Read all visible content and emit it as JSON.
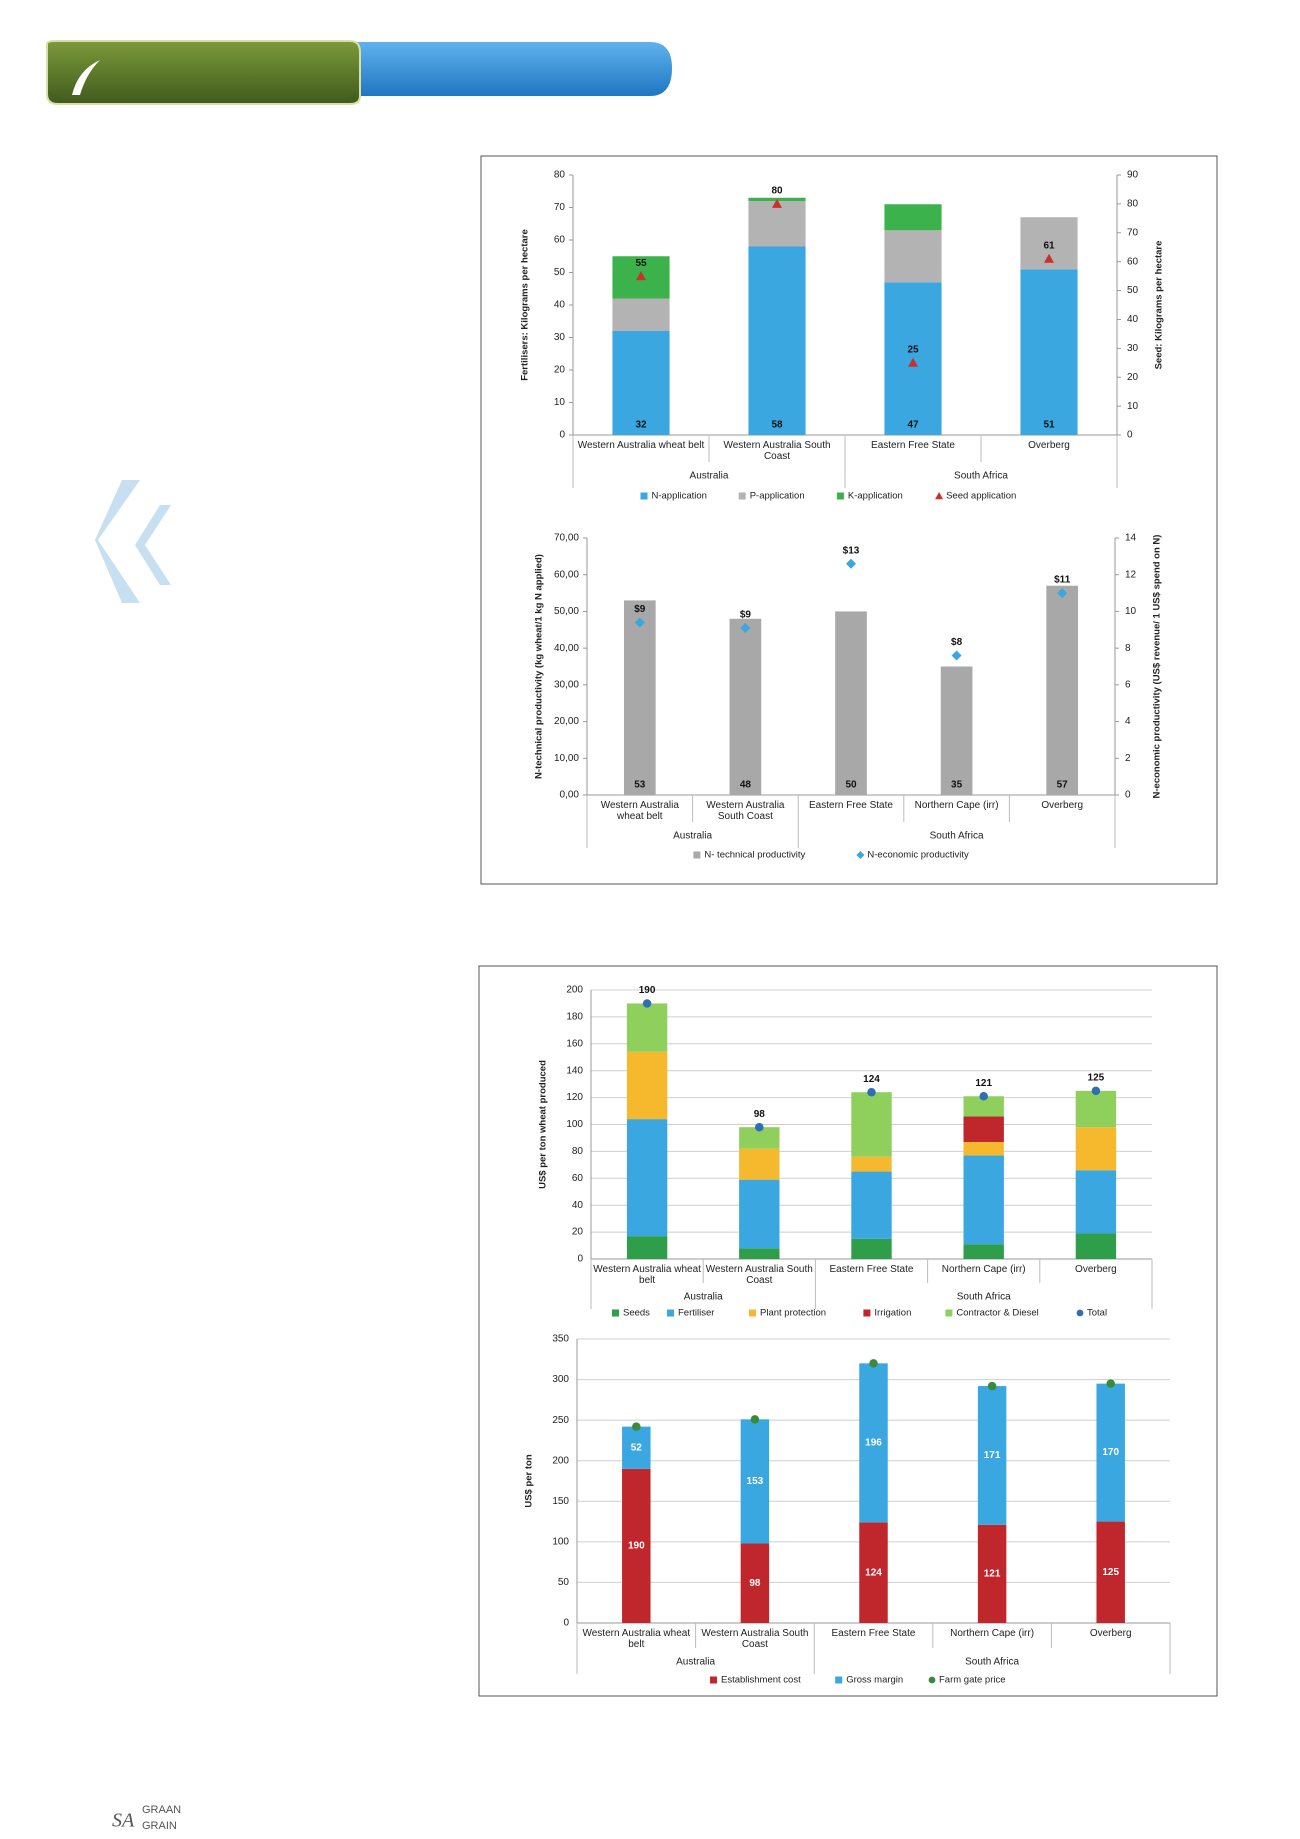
{
  "chart_data": [
    {
      "type": "bar",
      "stacked": true,
      "y_label": "Fertilisers: Kilograms per hectare",
      "y2_label": "Seed: Kilograms per hectare",
      "categories": [
        "Western Australia wheat belt",
        "Western Australia South Coast",
        "Eastern Free State",
        "Overberg"
      ],
      "groups": [
        {
          "name": "Australia",
          "count": 2
        },
        {
          "name": "South Africa",
          "count": 2
        }
      ],
      "series": [
        {
          "name": "N-application",
          "color": "#3ba7e1",
          "values": [
            32,
            58,
            47,
            51
          ],
          "labels": "bottom"
        },
        {
          "name": "P-application",
          "color": "#b3b3b3",
          "values": [
            10,
            14,
            16,
            16
          ]
        },
        {
          "name": "K-application",
          "color": "#3bb24b",
          "values": [
            13,
            1,
            8,
            0
          ]
        },
        {
          "name": "Seed application",
          "color": "#c8312c",
          "type": "scatter",
          "marker": "triangle",
          "axis": "y2",
          "values": [
            55,
            80,
            25,
            61
          ],
          "labels": "above"
        }
      ],
      "ylim": [
        0,
        80
      ],
      "yticks": [
        0,
        10,
        20,
        30,
        40,
        50,
        60,
        70,
        80
      ],
      "y2lim": [
        0,
        90
      ],
      "y2ticks": [
        0,
        10,
        20,
        30,
        40,
        50,
        60,
        70,
        80,
        90
      ],
      "grid": false,
      "legend": "bottom"
    },
    {
      "type": "bar",
      "stacked": true,
      "y_label": "N-technical productivity (kg wheat/1 kg N applied)",
      "y2_label": "N-economic productivity (US$ revenue/ 1 US$ spend on N)",
      "categories": [
        "Western Australia wheat belt",
        "Western Australia South Coast",
        "Eastern Free State",
        "Northern Cape (irr)",
        "Overberg"
      ],
      "groups": [
        {
          "name": "Australia",
          "count": 2
        },
        {
          "name": "South Africa",
          "count": 3
        }
      ],
      "series": [
        {
          "name": "N- technical productivity",
          "color": "#a8a8a8",
          "values": [
            53,
            48,
            50,
            35,
            57
          ],
          "labels": "bottom"
        },
        {
          "name": "N-economic productivity",
          "color": "#3ba7e1",
          "type": "scatter",
          "marker": "diamond",
          "axis": "y2",
          "values": [
            9.4,
            9.1,
            12.6,
            7.6,
            11.0
          ],
          "value_labels": [
            "$9",
            "$9",
            "$13",
            "$8",
            "$11"
          ],
          "labels": "above"
        }
      ],
      "ylim": [
        0,
        70
      ],
      "yticks": [
        {
          "value": 0,
          "label": "0,00"
        },
        {
          "value": 10,
          "label": "10,00"
        },
        {
          "value": 20,
          "label": "20,00"
        },
        {
          "value": 30,
          "label": "30,00"
        },
        {
          "value": 40,
          "label": "40,00"
        },
        {
          "value": 50,
          "label": "50,00"
        },
        {
          "value": 60,
          "label": "60,00"
        },
        {
          "value": 70,
          "label": "70,00"
        }
      ],
      "y2lim": [
        0,
        14
      ],
      "y2ticks": [
        0,
        2,
        4,
        6,
        8,
        10,
        12,
        14
      ],
      "grid": false,
      "legend": "bottom"
    },
    {
      "type": "bar",
      "stacked": true,
      "y_label": "US$ per ton wheat produced",
      "categories": [
        "Western Australia wheat belt",
        "Western Australia South Coast",
        "Eastern Free State",
        "Northern Cape (irr)",
        "Overberg"
      ],
      "groups": [
        {
          "name": "Australia",
          "count": 2
        },
        {
          "name": "South Africa",
          "count": 3
        }
      ],
      "series": [
        {
          "name": "Seeds",
          "color": "#2e9e4a",
          "values": [
            17,
            8,
            15,
            11,
            19
          ]
        },
        {
          "name": "Fertiliser",
          "color": "#3ba7e1",
          "values": [
            87,
            51,
            50,
            66,
            47
          ]
        },
        {
          "name": "Plant protection",
          "color": "#f6b92e",
          "values": [
            50,
            23,
            11,
            10,
            32
          ]
        },
        {
          "name": "Irrigation",
          "color": "#c0272d",
          "values": [
            0,
            0,
            0,
            19,
            0
          ]
        },
        {
          "name": "Contractor & Diesel",
          "color": "#8fd05c",
          "values": [
            36,
            16,
            48,
            15,
            27
          ]
        },
        {
          "name": "Total",
          "color": "#2f6db5",
          "type": "scatter",
          "marker": "circle",
          "values": [
            190,
            98,
            124,
            121,
            125
          ],
          "labels": "above"
        }
      ],
      "ylim": [
        0,
        200
      ],
      "yticks": [
        0,
        20,
        40,
        60,
        80,
        100,
        120,
        140,
        160,
        180,
        200
      ],
      "grid": true,
      "legend": "bottom"
    },
    {
      "type": "bar",
      "stacked": true,
      "y_label": "US$ per ton",
      "categories": [
        "Western Australia wheat belt",
        "Western Australia South Coast",
        "Eastern Free State",
        "Northern Cape (irr)",
        "Overberg"
      ],
      "groups": [
        {
          "name": "Australia",
          "count": 2
        },
        {
          "name": "South Africa",
          "count": 3
        }
      ],
      "series": [
        {
          "name": "Establishment cost",
          "color": "#c0272d",
          "values": [
            190,
            98,
            124,
            121,
            125
          ],
          "labels": "center"
        },
        {
          "name": "Gross margin",
          "color": "#3ba7e1",
          "values": [
            52,
            153,
            196,
            171,
            170
          ],
          "labels": "center"
        },
        {
          "name": "Farm gate price",
          "color": "#3a8a3a",
          "type": "scatter",
          "marker": "circle",
          "values": [
            242,
            251,
            320,
            292,
            295
          ]
        }
      ],
      "ylim": [
        0,
        350
      ],
      "yticks": [
        0,
        50,
        100,
        150,
        200,
        250,
        300,
        350
      ],
      "grid": true,
      "legend": "bottom"
    }
  ],
  "footer": {
    "logo": [
      "GRAAN",
      "SA",
      "GRAIN"
    ]
  }
}
